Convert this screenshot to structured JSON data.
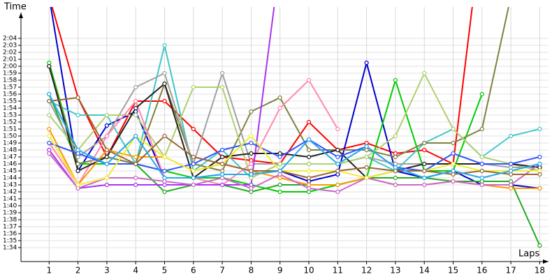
{
  "chart_data": {
    "type": "line",
    "y_label": "Time",
    "x_label": "Laps",
    "x": [
      1,
      2,
      3,
      4,
      5,
      6,
      7,
      8,
      9,
      10,
      11,
      12,
      13,
      14,
      15,
      16,
      17,
      18
    ],
    "xlim": [
      0,
      18.3
    ],
    "xticks": [
      1,
      2,
      3,
      4,
      5,
      6,
      7,
      8,
      9,
      10,
      11,
      12,
      13,
      14,
      15,
      16,
      17,
      18
    ],
    "ylim": [
      92,
      128.5
    ],
    "yticks": [
      {
        "value": 94,
        "label": "1:34"
      },
      {
        "value": 95,
        "label": "1:35"
      },
      {
        "value": 96,
        "label": "1:36"
      },
      {
        "value": 97,
        "label": "1:37"
      },
      {
        "value": 98,
        "label": "1:38"
      },
      {
        "value": 99,
        "label": "1:39"
      },
      {
        "value": 100,
        "label": "1:40"
      },
      {
        "value": 101,
        "label": "1:41"
      },
      {
        "value": 102,
        "label": "1:42"
      },
      {
        "value": 103,
        "label": "1:43"
      },
      {
        "value": 104,
        "label": "1:44"
      },
      {
        "value": 105,
        "label": "1:45"
      },
      {
        "value": 106,
        "label": "1:46"
      },
      {
        "value": 107,
        "label": "1:47"
      },
      {
        "value": 108,
        "label": "1:48"
      },
      {
        "value": 109,
        "label": "1:49"
      },
      {
        "value": 110,
        "label": "1:50"
      },
      {
        "value": 111,
        "label": "1:51"
      },
      {
        "value": 112,
        "label": "1:52"
      },
      {
        "value": 113,
        "label": "1:53"
      },
      {
        "value": 114,
        "label": "1:54"
      },
      {
        "value": 115,
        "label": "1:55"
      },
      {
        "value": 116,
        "label": "1:56"
      },
      {
        "value": 117,
        "label": "1:57"
      },
      {
        "value": 118,
        "label": "1:58"
      },
      {
        "value": 119,
        "label": "1:59"
      },
      {
        "value": 120,
        "label": "2:00"
      },
      {
        "value": 121,
        "label": "2:01"
      },
      {
        "value": 122,
        "label": "2:02"
      },
      {
        "value": 123,
        "label": "2:03"
      },
      {
        "value": 124,
        "label": "2:04"
      }
    ],
    "grid": true,
    "series": [
      {
        "color": "#ff0000",
        "values": [
          130,
          115.5,
          107,
          115,
          115,
          111,
          107,
          106.5,
          106,
          112,
          108,
          109,
          107.5,
          108,
          106,
          140,
          null,
          null
        ]
      },
      {
        "color": "#0000cc",
        "values": [
          130,
          105,
          111.5,
          113.5,
          104,
          104,
          104.5,
          104.5,
          105,
          103.5,
          104.5,
          120.5,
          105,
          104,
          105,
          103,
          103,
          102.5
        ]
      },
      {
        "color": "#40c8c8",
        "values": [
          115,
          113,
          113,
          106,
          123,
          105,
          108,
          104,
          106,
          106,
          106,
          107,
          105,
          109,
          111,
          107,
          110,
          111
        ]
      },
      {
        "color": "#00cc00",
        "values": [
          120.5,
          106,
          106,
          106,
          105,
          104,
          104,
          103,
          102,
          102,
          103,
          104,
          118,
          105,
          105,
          116,
          null,
          null
        ]
      },
      {
        "color": "#22aa22",
        "values": [
          116,
          106,
          107,
          106,
          102,
          103,
          103,
          102,
          103,
          103,
          103,
          104,
          104,
          104,
          103.5,
          103.5,
          103.5,
          94.3
        ]
      },
      {
        "color": "#808040",
        "values": [
          120,
          106,
          107,
          106,
          117.5,
          106,
          105,
          113.5,
          115.5,
          108,
          108,
          108,
          107,
          109,
          109,
          111,
          130,
          null
        ]
      },
      {
        "color": "#a0a0a0",
        "values": [
          115,
          107,
          110,
          117,
          119,
          106,
          119,
          106,
          106,
          106,
          106,
          107,
          106,
          106,
          106,
          106,
          105.5,
          105.5
        ]
      },
      {
        "color": "#b0d070",
        "values": [
          113,
          108,
          113,
          113,
          107,
          117,
          117,
          104,
          106,
          106,
          106,
          107,
          110,
          119,
          111,
          107,
          106,
          105
        ]
      },
      {
        "color": "#ff88b0",
        "values": [
          109,
          103,
          110,
          115,
          104,
          104,
          103,
          106,
          114,
          118,
          111,
          null,
          null,
          null,
          null,
          null,
          null,
          null
        ]
      },
      {
        "color": "#aa33ee",
        "values": [
          108,
          102.5,
          103,
          103,
          103,
          103,
          103,
          103,
          135,
          null,
          null,
          null,
          null,
          null,
          null,
          null,
          null,
          null
        ]
      },
      {
        "color": "#222222",
        "values": [
          120,
          105,
          107,
          114,
          117.5,
          104,
          107,
          107.5,
          107.5,
          107,
          108,
          104,
          105,
          106,
          106,
          106,
          106,
          105.5
        ]
      },
      {
        "color": "#ff9900",
        "values": [
          111,
          103,
          108,
          107,
          107,
          105,
          106,
          105,
          104,
          103,
          103,
          104,
          103,
          103,
          103.5,
          103,
          102.5,
          102.5
        ]
      },
      {
        "color": "#3355ff",
        "values": [
          109,
          107.5,
          106,
          106,
          105,
          106,
          108,
          109,
          107,
          109.5,
          107,
          108.5,
          105.5,
          105,
          107.5,
          106,
          106,
          107
        ]
      },
      {
        "color": "#cc66cc",
        "values": [
          107.5,
          102.5,
          104,
          104,
          103.5,
          103,
          104,
          102.5,
          104.5,
          102.5,
          102,
          104,
          103,
          103,
          103.5,
          103,
          103,
          106
        ]
      },
      {
        "color": "#eeee33",
        "values": [
          110,
          103,
          104,
          110,
          107,
          105,
          106,
          110,
          105,
          105,
          105,
          104,
          105,
          105,
          106,
          105,
          105,
          105
        ]
      },
      {
        "color": "#996633",
        "values": [
          115,
          115.5,
          108,
          106,
          110,
          107,
          106,
          105,
          105,
          104,
          105,
          105.5,
          105,
          105,
          104.5,
          105,
          104.5,
          104.5
        ]
      },
      {
        "color": "#22aaee",
        "values": [
          116,
          108,
          106,
          110,
          104,
          104,
          104.5,
          104.5,
          105,
          109.5,
          106,
          108.5,
          105.5,
          104,
          105,
          104,
          105,
          106
        ]
      }
    ]
  }
}
